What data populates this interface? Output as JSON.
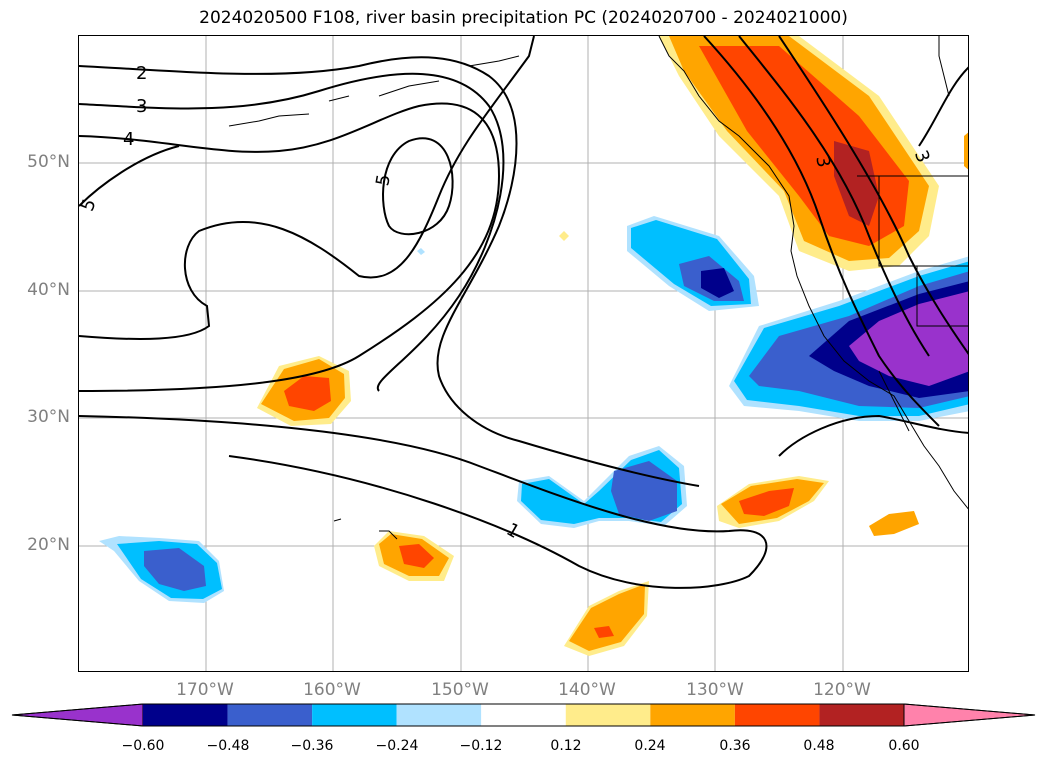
{
  "title": "2024020500 F108, river basin precipitation PC (2024020700 - 2024021000)",
  "map": {
    "lat_labels": [
      "50°N",
      "40°N",
      "30°N",
      "20°N"
    ],
    "lon_labels": [
      "170°W",
      "160°W",
      "150°W",
      "140°W",
      "130°W",
      "120°W"
    ],
    "contour_labels": [
      "2",
      "3",
      "4",
      "5",
      "5",
      "1",
      "3",
      "3"
    ]
  },
  "colorbar": {
    "ticks": [
      "−0.60",
      "−0.48",
      "−0.36",
      "−0.24",
      "−0.12",
      "0.12",
      "0.24",
      "0.36",
      "0.48",
      "0.60"
    ],
    "colors": [
      "#9932cc",
      "#00008b",
      "#3a5fcd",
      "#00bfff",
      "#b0e2ff",
      "#ffffff",
      "#ffec8b",
      "#ffa500",
      "#ff4500",
      "#b22222",
      "#ff82ab"
    ]
  }
}
